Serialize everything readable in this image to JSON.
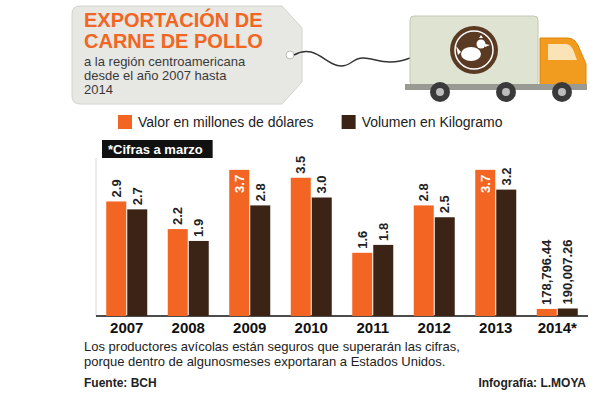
{
  "chart_data": {
    "type": "bar",
    "title": [
      "EXPORTACIÓN DE",
      "CARNE DE POLLO"
    ],
    "subtitle": [
      "a la región centroamericana",
      "desde el año 2007 hasta",
      "2014"
    ],
    "categories": [
      "2007",
      "2008",
      "2009",
      "2010",
      "2011",
      "2012",
      "2013",
      "2014*"
    ],
    "series": [
      {
        "name": "Valor en millones de dólares",
        "color": "#f26522",
        "values": [
          2.9,
          2.2,
          3.7,
          3.5,
          1.6,
          2.8,
          3.7,
          0.17879644
        ],
        "value_labels": [
          "2.9",
          "2.2",
          "3.7",
          "3.5",
          "1.6",
          "2.8",
          "3.7",
          "178,796.44"
        ]
      },
      {
        "name": "Volumen en Kilogramo",
        "color": "#3b2416",
        "values": [
          2.7,
          1.9,
          2.8,
          3.0,
          1.8,
          2.5,
          3.2,
          0.19000726
        ],
        "value_labels": [
          "2.7",
          "1.9",
          "2.8",
          "3.0",
          "1.8",
          "2.5",
          "3.2",
          "190,007.26"
        ]
      }
    ],
    "ylim": [
      0,
      4
    ],
    "data_labels": true,
    "tick_labels": "x",
    "legend": "top",
    "annotations": [
      "*Cifras a marzo"
    ],
    "note": [
      "Los productores avícolas están seguros que superarán las cifras,",
      "porque dentro de algunosmeses exportaran a Estados Unidos."
    ],
    "source": "Fuente: BCH",
    "credit": "Infografía: L.MOYA"
  }
}
